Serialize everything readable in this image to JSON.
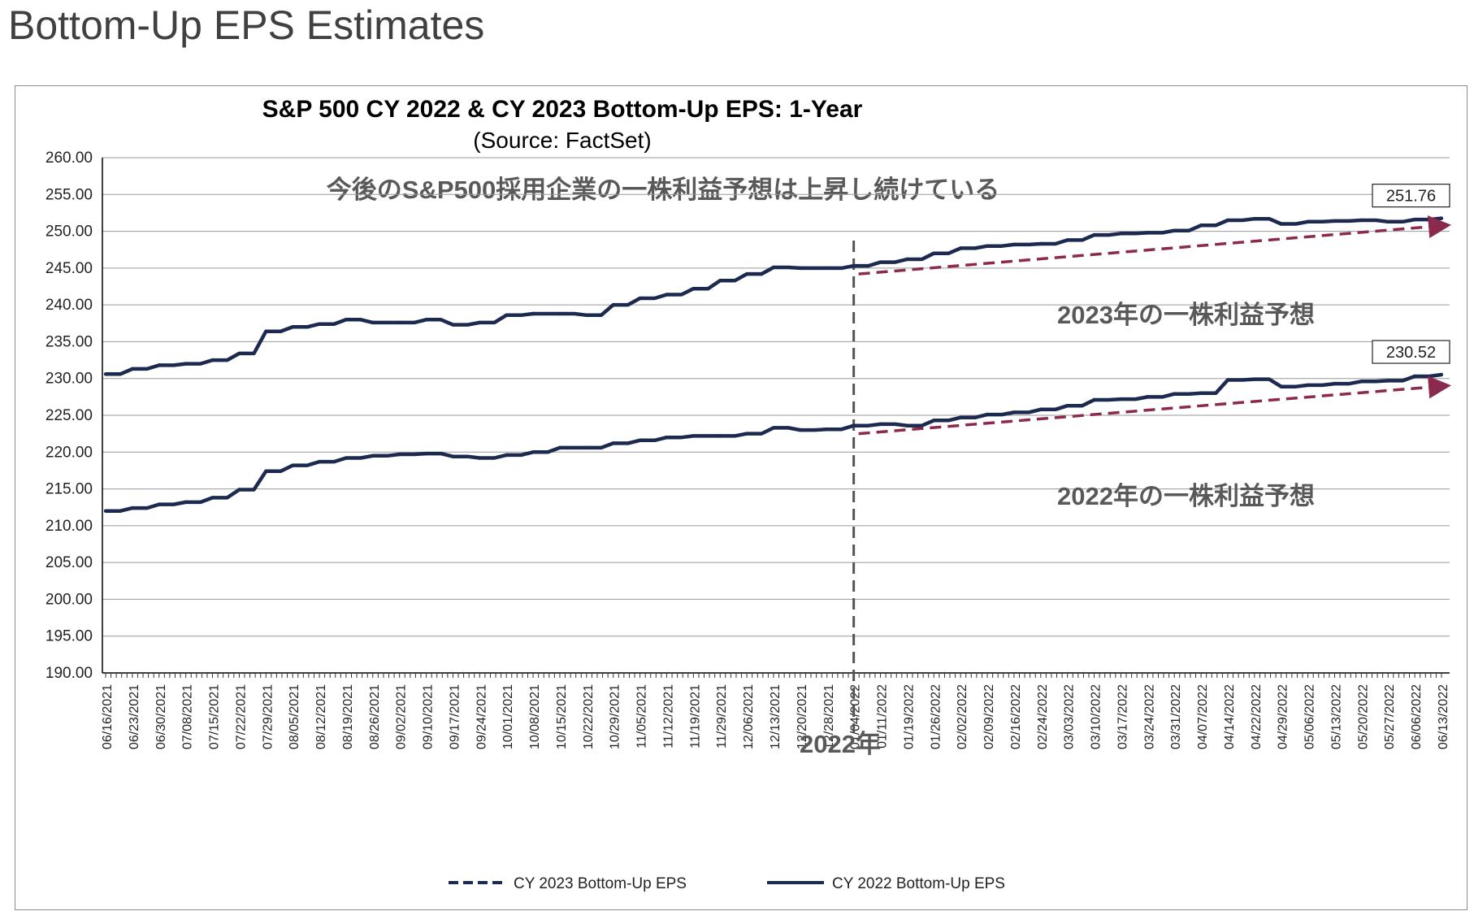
{
  "page": {
    "slide_title": "Bottom-Up EPS Estimates"
  },
  "chart_data": {
    "type": "line",
    "title": "S&P 500 CY 2022 & CY 2023 Bottom-Up EPS: 1-Year",
    "subtitle": "(Source: FactSet)",
    "ylim": [
      190,
      260
    ],
    "y_ticks": [
      "190.00",
      "195.00",
      "200.00",
      "205.00",
      "210.00",
      "215.00",
      "220.00",
      "225.00",
      "230.00",
      "235.00",
      "240.00",
      "245.00",
      "250.00",
      "255.00",
      "260.00"
    ],
    "x_ticks": [
      "06/16/2021",
      "06/23/2021",
      "06/30/2021",
      "07/08/2021",
      "07/15/2021",
      "07/22/2021",
      "07/29/2021",
      "08/05/2021",
      "08/12/2021",
      "08/19/2021",
      "08/26/2021",
      "09/02/2021",
      "09/10/2021",
      "09/17/2021",
      "09/24/2021",
      "10/01/2021",
      "10/08/2021",
      "10/15/2021",
      "10/22/2021",
      "10/29/2021",
      "11/05/2021",
      "11/12/2021",
      "11/19/2021",
      "11/29/2021",
      "12/06/2021",
      "12/13/2021",
      "12/20/2021",
      "12/28/2021",
      "01/04/2022",
      "01/11/2022",
      "01/19/2022",
      "01/26/2022",
      "02/02/2022",
      "02/09/2022",
      "02/16/2022",
      "02/24/2022",
      "03/03/2022",
      "03/10/2022",
      "03/17/2022",
      "03/24/2022",
      "03/31/2022",
      "04/07/2022",
      "04/14/2022",
      "04/22/2022",
      "04/29/2022",
      "05/06/2022",
      "05/13/2022",
      "05/20/2022",
      "05/27/2022",
      "06/06/2022",
      "06/13/2022"
    ],
    "grid": true,
    "legend_position": "bottom",
    "series": [
      {
        "name": "CY 2023 Bottom-Up EPS",
        "line_style": "dashed",
        "color": "#1c2a4f",
        "end_label": "251.76",
        "values": [
          230.6,
          231.3,
          231.8,
          232.0,
          232.5,
          233.4,
          236.4,
          237.0,
          237.4,
          238.0,
          237.6,
          237.6,
          238.0,
          237.3,
          237.6,
          238.6,
          238.8,
          238.8,
          238.6,
          240.0,
          240.9,
          241.4,
          242.2,
          243.3,
          244.2,
          245.1,
          245.0,
          245.0,
          245.3,
          245.8,
          246.2,
          247.0,
          247.7,
          248.0,
          248.2,
          248.3,
          248.8,
          249.5,
          249.7,
          249.8,
          250.1,
          250.8,
          251.5,
          251.7,
          251.0,
          251.3,
          251.4,
          251.5,
          251.3,
          251.6,
          251.76
        ]
      },
      {
        "name": "CY 2022 Bottom-Up EPS",
        "line_style": "solid",
        "color": "#1c2a4f",
        "end_label": "230.52",
        "values": [
          212.0,
          212.4,
          212.9,
          213.2,
          213.8,
          214.9,
          217.4,
          218.2,
          218.7,
          219.2,
          219.5,
          219.7,
          219.8,
          219.4,
          219.2,
          219.6,
          220.0,
          220.6,
          220.6,
          221.2,
          221.6,
          222.0,
          222.2,
          222.2,
          222.5,
          223.3,
          223.0,
          223.1,
          223.6,
          223.8,
          223.6,
          224.3,
          224.7,
          225.1,
          225.4,
          225.8,
          226.3,
          227.1,
          227.2,
          227.5,
          227.9,
          228.0,
          229.8,
          229.9,
          228.9,
          229.1,
          229.3,
          229.6,
          229.7,
          230.3,
          230.52
        ]
      }
    ],
    "annotations": {
      "headline": "今後のS&P500採用企業の一株利益予想は上昇し続けている",
      "label_2023": "2023年の一株利益予想",
      "label_2022": "2022年の一株利益予想",
      "divider_label": "2022年",
      "divider_at": "01/04/2022",
      "arrow_color": "#8b2a4e",
      "arrow_2023": {
        "from_date": "01/04/2022",
        "from_value": 244.2,
        "to_date": "06/13/2022",
        "to_value": 250.8
      },
      "arrow_2022": {
        "from_date": "01/04/2022",
        "from_value": 222.5,
        "to_date": "06/13/2022",
        "to_value": 229.0
      }
    }
  }
}
